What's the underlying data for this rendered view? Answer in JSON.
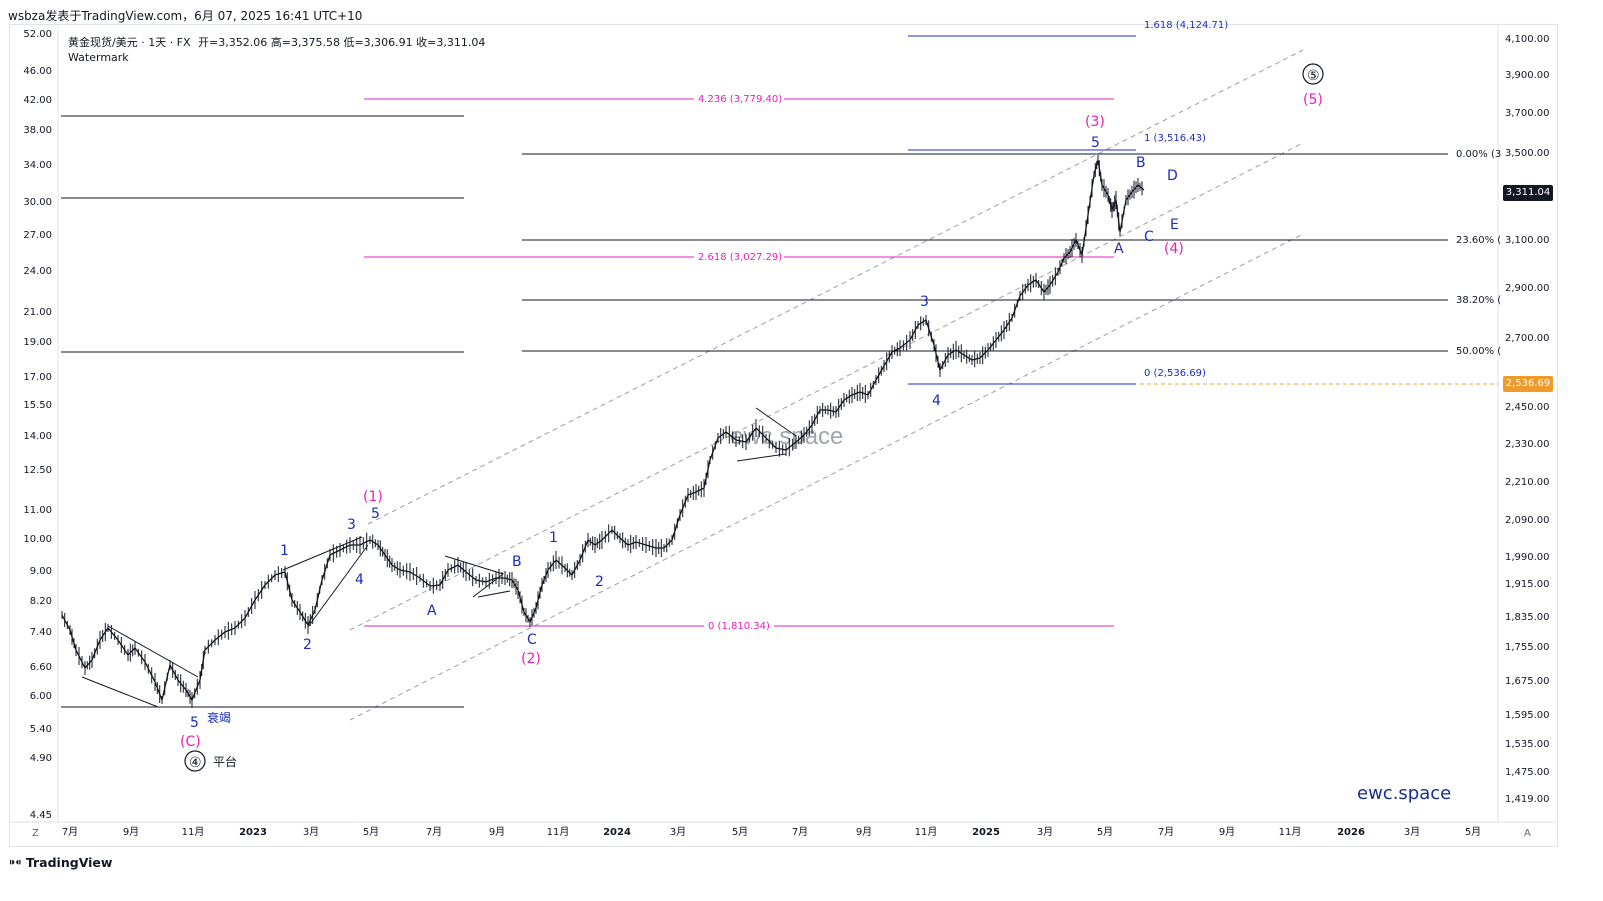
{
  "header": {
    "text": "wsbza发表于TradingView.com，6月 07, 2025 16:41 UTC+10"
  },
  "legend": {
    "symbol": "黄金现货/美元 · 1天 · FX",
    "ohlc": "开=3,352.06  高=3,375.58  低=3,306.91  收=3,311.04",
    "watermark": "Watermark"
  },
  "brand": "ewc.space",
  "watermark_text": "ewc.space",
  "footer": "TradingView",
  "corner_left": "Z",
  "corner_right": "A",
  "colors": {
    "magenta": "#e91ec3",
    "blue": "#1b2cc1",
    "black": "#131722",
    "orange": "#f5a623",
    "dark_tag": "#131722",
    "orange_tag": "#f09a2a"
  },
  "price_tags": {
    "last": "3,311.04",
    "level": "2,536.69"
  },
  "chart_data": {
    "type": "line",
    "right_axis": {
      "labels": [
        "4,100.00",
        "3,900.00",
        "3,700.00",
        "3,500.00",
        "3,311.04",
        "3,100.00",
        "2,900.00",
        "2,700.00",
        "2,536.69",
        "2,450.00",
        "2,330.00",
        "2,210.00",
        "2,090.00",
        "1,990.00",
        "1,915.00",
        "1,835.00",
        "1,755.00",
        "1,675.00",
        "1,595.00",
        "1,535.00",
        "1,475.00",
        "1,419.00"
      ]
    },
    "left_axis": {
      "labels": [
        "52.00",
        "46.00",
        "42.00",
        "38.00",
        "34.00",
        "30.00",
        "27.00",
        "24.00",
        "21.00",
        "19.00",
        "17.00",
        "15.50",
        "14.00",
        "12.50",
        "11.00",
        "10.00",
        "9.00",
        "8.20",
        "7.40",
        "6.60",
        "6.00",
        "5.40",
        "4.90",
        "4.45"
      ]
    },
    "x_axis": {
      "labels": [
        "7月",
        "9月",
        "11月",
        "2023",
        "3月",
        "5月",
        "7月",
        "9月",
        "11月",
        "2024",
        "3月",
        "5月",
        "7月",
        "9月",
        "11月",
        "2025",
        "3月",
        "5月",
        "7月",
        "9月",
        "11月",
        "2026",
        "3月",
        "5月"
      ]
    },
    "fib_levels": {
      "magenta": [
        "4.236 (3,779.40)",
        "2.618 (3,027.29)",
        "0 (1,810.34)"
      ],
      "blue": [
        "1.618 (4,124.71)",
        "1 (3,516.43)",
        "0 (2,536.69)"
      ],
      "black": [
        "0.00% (3",
        "23.60% (",
        "38.20% (",
        "50.00% ("
      ]
    },
    "wave_labels": {
      "black_circle": [
        "④",
        "⑤"
      ],
      "black_text": [
        "平台"
      ],
      "magenta": [
        "(C)",
        "(1)",
        "(2)",
        "(3)",
        "(4)",
        "(5)"
      ],
      "blue": [
        "5",
        "衰竭",
        "1",
        "2",
        "3",
        "4",
        "5",
        "A",
        "B",
        "C",
        "1",
        "2",
        "3",
        "4",
        "5",
        "A",
        "B",
        "C",
        "D",
        "E"
      ]
    }
  }
}
